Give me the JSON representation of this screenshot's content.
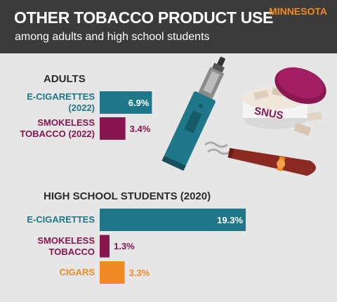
{
  "header": {
    "title": "OTHER TOBACCO PRODUCT USE",
    "subtitle": "among adults and high school students",
    "region": "MINNESOTA"
  },
  "illustration_label": "SNUS",
  "chart_data": [
    {
      "type": "bar",
      "orientation": "horizontal",
      "title": "ADULTS",
      "categories": [
        "E-CIGARETTES (2022)",
        "SMOKELESS TOBACCO (2022)"
      ],
      "values": [
        6.9,
        3.4
      ],
      "value_labels": [
        "6.9%",
        "3.4%"
      ],
      "colors": [
        "#1f7889",
        "#8a1650"
      ]
    },
    {
      "type": "bar",
      "orientation": "horizontal",
      "title": "HIGH SCHOOL STUDENTS (2020)",
      "categories": [
        "E-CIGARETTES",
        "SMOKELESS TOBACCO",
        "CIGARS"
      ],
      "values": [
        19.3,
        1.3,
        3.3
      ],
      "value_labels": [
        "19.3%",
        "1.3%",
        "3.3%"
      ],
      "colors": [
        "#1f7889",
        "#8a1650",
        "#f08a24"
      ]
    }
  ]
}
